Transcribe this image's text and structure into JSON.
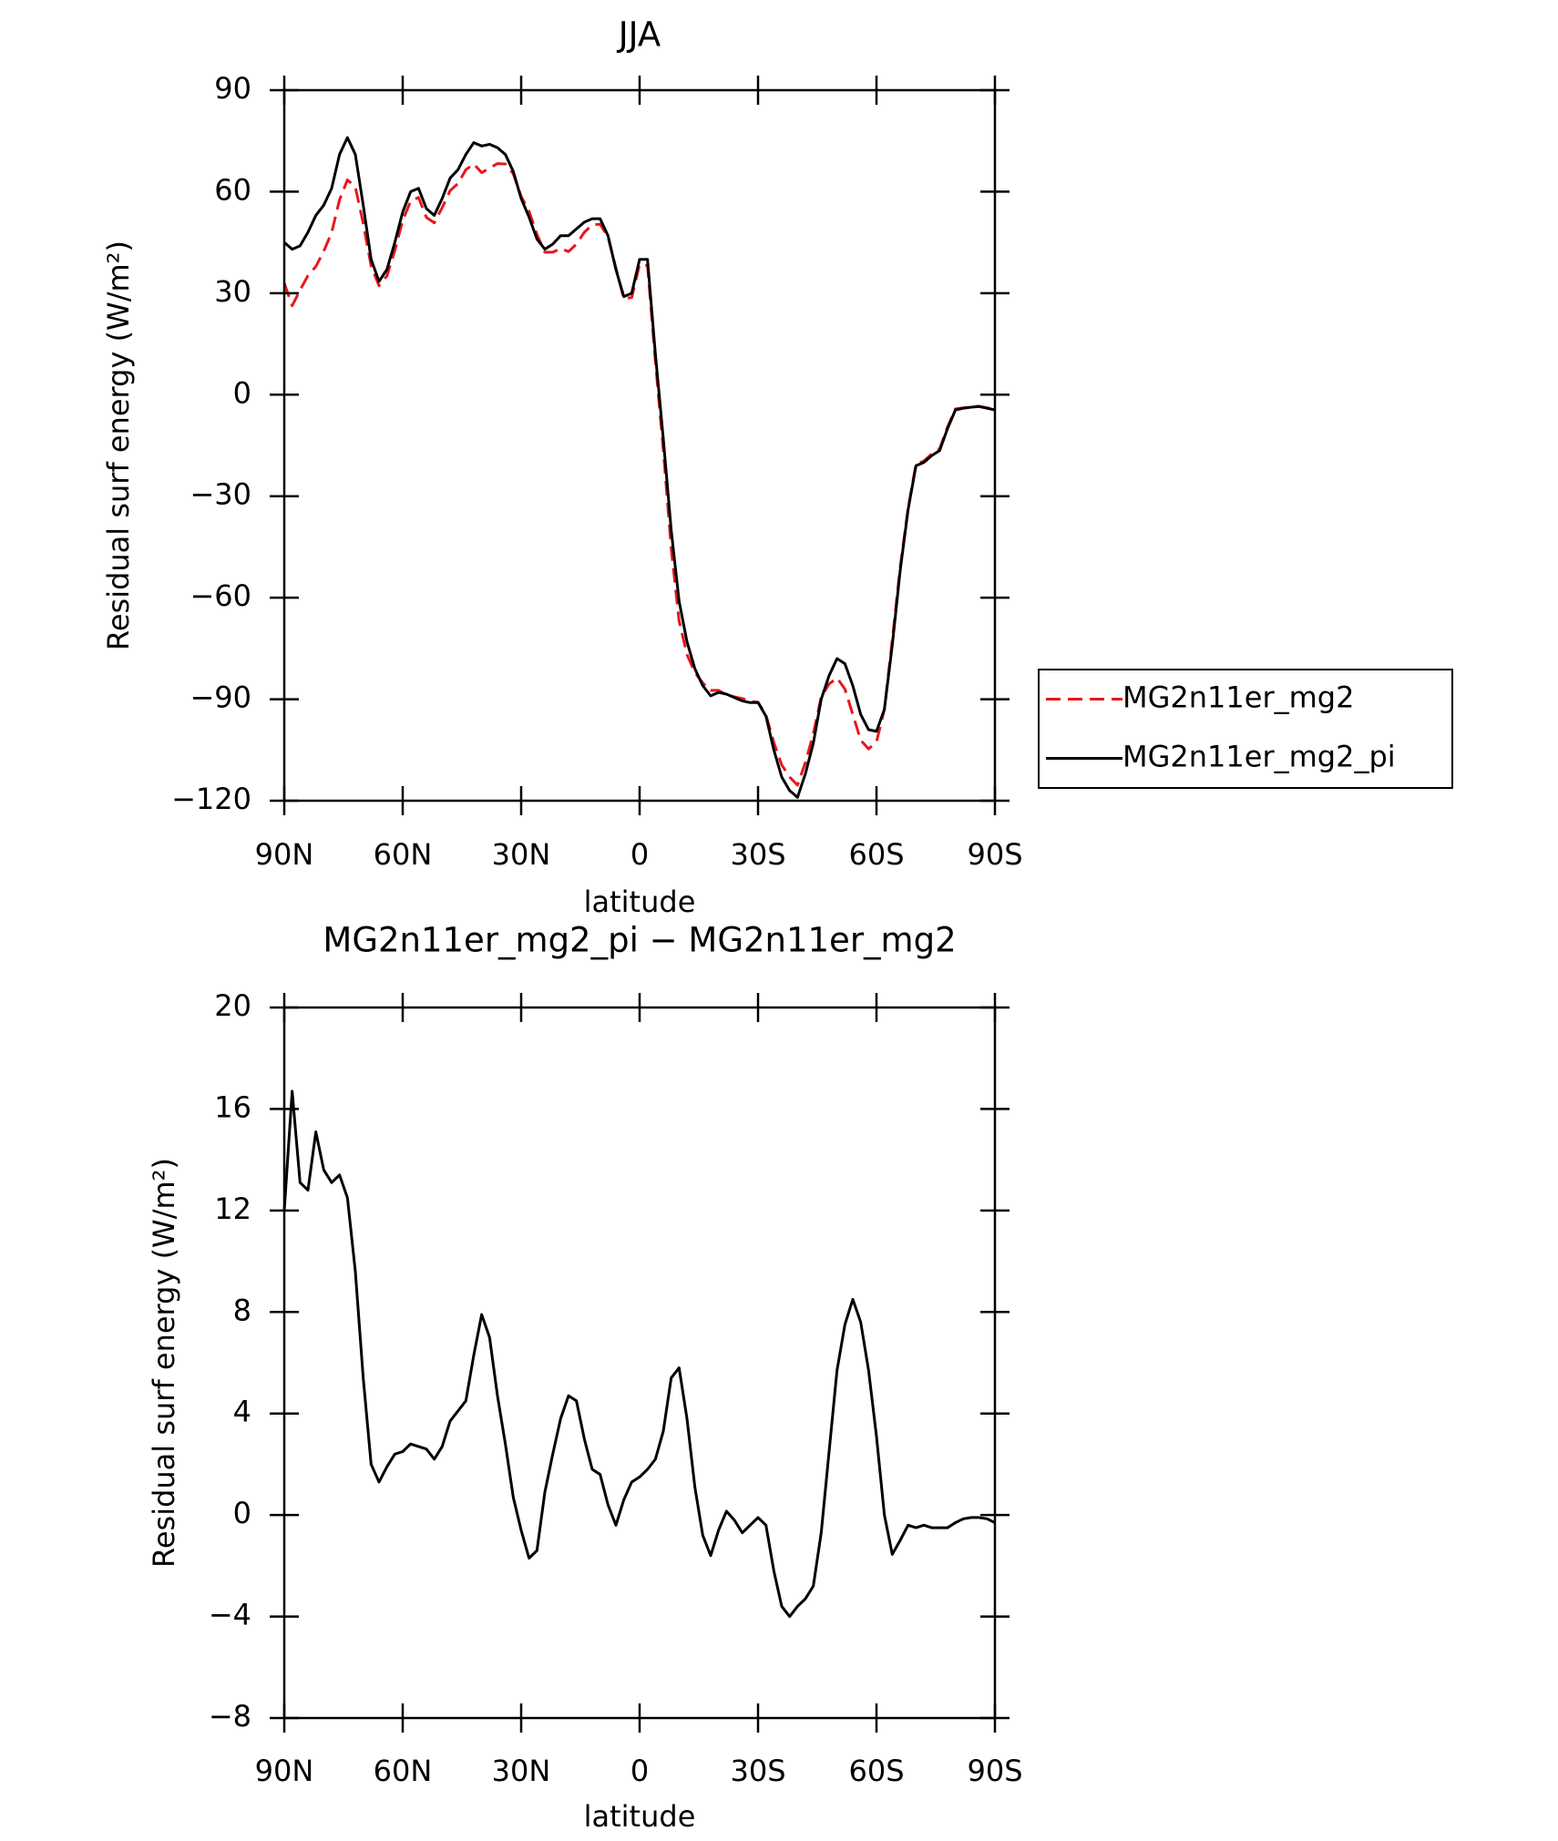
{
  "chart_data": [
    {
      "type": "line",
      "title": "JJA",
      "xlabel": "latitude",
      "ylabel": "Residual surf energy (W/m²)",
      "x": [
        90,
        88,
        86,
        84,
        82,
        80,
        78,
        76,
        74,
        72,
        70,
        68,
        66,
        64,
        62,
        60,
        58,
        56,
        54,
        52,
        50,
        48,
        46,
        44,
        42,
        40,
        38,
        36,
        34,
        32,
        30,
        28,
        26,
        24,
        22,
        20,
        18,
        16,
        14,
        12,
        10,
        8,
        6,
        4,
        2,
        0,
        -2,
        -4,
        -6,
        -8,
        -10,
        -12,
        -14,
        -16,
        -18,
        -20,
        -22,
        -24,
        -26,
        -28,
        -30,
        -32,
        -34,
        -36,
        -38,
        -40,
        -42,
        -44,
        -46,
        -48,
        -50,
        -52,
        -54,
        -56,
        -58,
        -60,
        -62,
        -64,
        -66,
        -68,
        -70,
        -72,
        -74,
        -76,
        -78,
        -80,
        -82,
        -84,
        -86,
        -88,
        -90
      ],
      "xlim": [
        90,
        -90
      ],
      "xticks": [
        {
          "value": 90,
          "label": "90N"
        },
        {
          "value": 60,
          "label": "60N"
        },
        {
          "value": 30,
          "label": "30N"
        },
        0,
        {
          "value": -30,
          "label": "30S"
        },
        {
          "value": -60,
          "label": "60S"
        },
        {
          "value": -90,
          "label": "90S"
        }
      ],
      "ylim": [
        -120,
        90
      ],
      "yticks": [
        90,
        60,
        30,
        0,
        {
          "value": -30,
          "label": "−30"
        },
        {
          "value": -60,
          "label": "−60"
        },
        {
          "value": -90,
          "label": "−90"
        },
        {
          "value": -120,
          "label": "−120"
        }
      ],
      "legend": "right",
      "series": [
        {
          "name": "MG2n11er_mg2",
          "color": "#e8171c",
          "dashed": true,
          "values": [
            33,
            26.3,
            30.9,
            35.2,
            37.9,
            42.4,
            47.9,
            57.6,
            63.5,
            61.4,
            50.6,
            38,
            32.2,
            35.1,
            42.6,
            51.5,
            57.2,
            58.3,
            52.4,
            50.8,
            55.3,
            60.3,
            62.4,
            66.5,
            68.2,
            65.6,
            67,
            68.3,
            68.2,
            65.3,
            58.6,
            54.2,
            47.4,
            42.1,
            42.1,
            43.2,
            42.3,
            44.5,
            48,
            50.2,
            50.4,
            46.6,
            37.4,
            28.4,
            28.7,
            38.5,
            38.2,
            9.8,
            -16.3,
            -45.4,
            -66.8,
            -76.8,
            -82.1,
            -85.2,
            -87.4,
            -87.4,
            -88.7,
            -89.3,
            -89.8,
            -90.6,
            -90.9,
            -94.6,
            -102.8,
            -109.4,
            -113,
            -115.4,
            -108.7,
            -100.2,
            -89.3,
            -85.5,
            -83.7,
            -87,
            -94.5,
            -102.1,
            -104.7,
            -102.6,
            -93,
            -72.5,
            -51,
            -33.6,
            -20.5,
            -19.6,
            -17.5,
            -16,
            -9.5,
            -4.2,
            -3.9,
            -3.6,
            -3.4,
            -3.9,
            -4.2
          ]
        },
        {
          "name": "MG2n11er_mg2_pi",
          "color": "#000000",
          "dashed": false,
          "values": [
            45,
            43,
            44,
            48,
            53,
            56,
            61,
            71,
            76,
            71,
            56,
            40,
            33.5,
            37,
            45,
            54,
            60,
            61,
            55,
            53,
            58,
            64,
            66.5,
            71,
            74.5,
            73.5,
            74,
            73,
            71,
            66,
            58,
            52.5,
            46,
            43,
            44.5,
            47,
            47,
            49,
            51,
            52,
            52,
            47,
            37,
            29,
            30,
            40,
            40,
            12,
            -13,
            -40,
            -61,
            -73,
            -81,
            -86,
            -89,
            -88,
            -88.5,
            -89.5,
            -90.5,
            -91,
            -91,
            -95,
            -105,
            -113,
            -117,
            -119,
            -112,
            -103,
            -90,
            -83,
            -78,
            -79.5,
            -86,
            -94.5,
            -99,
            -99.5,
            -93,
            -74,
            -52,
            -34,
            -21,
            -20,
            -18,
            -16.5,
            -10,
            -4.5,
            -4,
            -3.7,
            -3.5,
            -4,
            -4.5
          ]
        }
      ]
    },
    {
      "type": "line",
      "title": "MG2n11er_mg2_pi − MG2n11er_mg2",
      "xlabel": "latitude",
      "ylabel": "Residual surf energy (W/m²)",
      "x": [
        90,
        88,
        86,
        84,
        82,
        80,
        78,
        76,
        74,
        72,
        70,
        68,
        66,
        64,
        62,
        60,
        58,
        56,
        54,
        52,
        50,
        48,
        46,
        44,
        42,
        40,
        38,
        36,
        34,
        32,
        30,
        28,
        26,
        24,
        22,
        20,
        18,
        16,
        14,
        12,
        10,
        8,
        6,
        4,
        2,
        0,
        -2,
        -4,
        -6,
        -8,
        -10,
        -12,
        -14,
        -16,
        -18,
        -20,
        -22,
        -24,
        -26,
        -28,
        -30,
        -32,
        -34,
        -36,
        -38,
        -40,
        -42,
        -44,
        -46,
        -48,
        -50,
        -52,
        -54,
        -56,
        -58,
        -60,
        -62,
        -64,
        -66,
        -68,
        -70,
        -72,
        -74,
        -76,
        -78,
        -80,
        -82,
        -84,
        -86,
        -88,
        -90
      ],
      "xlim": [
        90,
        -90
      ],
      "xticks": [
        {
          "value": 90,
          "label": "90N"
        },
        {
          "value": 60,
          "label": "60N"
        },
        {
          "value": 30,
          "label": "30N"
        },
        0,
        {
          "value": -30,
          "label": "30S"
        },
        {
          "value": -60,
          "label": "60S"
        },
        {
          "value": -90,
          "label": "90S"
        }
      ],
      "ylim": [
        -8,
        20
      ],
      "yticks": [
        20,
        16,
        12,
        8,
        4,
        0,
        {
          "value": -4,
          "label": "−4"
        },
        {
          "value": -8,
          "label": "−8"
        }
      ],
      "series": [
        {
          "color": "#000000",
          "dashed": false,
          "values": [
            12,
            16.7,
            13.1,
            12.8,
            15.1,
            13.6,
            13.1,
            13.4,
            12.5,
            9.6,
            5.4,
            2,
            1.3,
            1.9,
            2.4,
            2.5,
            2.8,
            2.7,
            2.6,
            2.2,
            2.7,
            3.7,
            4.1,
            4.5,
            6.3,
            7.9,
            7,
            4.7,
            2.8,
            0.7,
            -0.6,
            -1.7,
            -1.4,
            0.9,
            2.4,
            3.8,
            4.7,
            4.5,
            3,
            1.8,
            1.6,
            0.4,
            -0.4,
            0.6,
            1.3,
            1.5,
            1.8,
            2.2,
            3.3,
            5.4,
            5.8,
            3.8,
            1.1,
            -0.8,
            -1.6,
            -0.6,
            0.15,
            -0.2,
            -0.7,
            -0.4,
            -0.1,
            -0.4,
            -2.2,
            -3.6,
            -4,
            -3.6,
            -3.3,
            -2.8,
            -0.7,
            2.5,
            5.7,
            7.5,
            8.5,
            7.6,
            5.7,
            3.1,
            0,
            -1.55,
            -1,
            -0.4,
            -0.5,
            -0.4,
            -0.5,
            -0.5,
            -0.5,
            -0.3,
            -0.15,
            -0.1,
            -0.1,
            -0.15,
            -0.3
          ]
        }
      ]
    }
  ]
}
